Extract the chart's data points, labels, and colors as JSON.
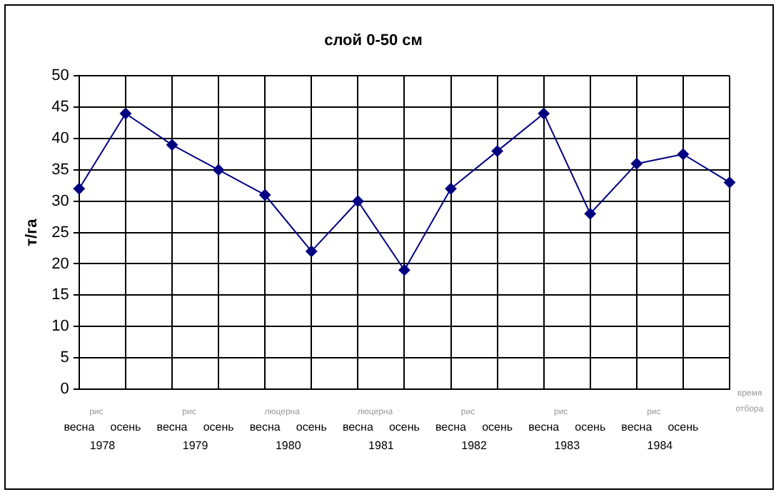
{
  "chart_data": {
    "type": "line",
    "title": "слой 0-50 см",
    "xlabel": "время отбора",
    "ylabel": "т/га",
    "categories": [
      "весна",
      "осень",
      "весна",
      "осень",
      "весна",
      "осень",
      "весна",
      "осень",
      "весна",
      "осень",
      "весна",
      "осень",
      "весна",
      "осень",
      null
    ],
    "series": [
      {
        "color": "#000080",
        "values": [
          32,
          44,
          39,
          35,
          31,
          22,
          30,
          19,
          32,
          38,
          44,
          28,
          36,
          37.5,
          33
        ]
      }
    ],
    "ylim": [
      0,
      50
    ],
    "yticks": [
      0,
      5,
      10,
      15,
      20,
      25,
      30,
      35,
      40,
      45,
      50
    ],
    "grid": true,
    "legend": false,
    "marker": "diamond",
    "line_style": "solid",
    "annotations": [
      "рис",
      "рис",
      "люцерна",
      "люцерна",
      "рис",
      "рис",
      "рис",
      "1978",
      "1979",
      "1980",
      "1981",
      "1982",
      "1983",
      "1984"
    ]
  }
}
